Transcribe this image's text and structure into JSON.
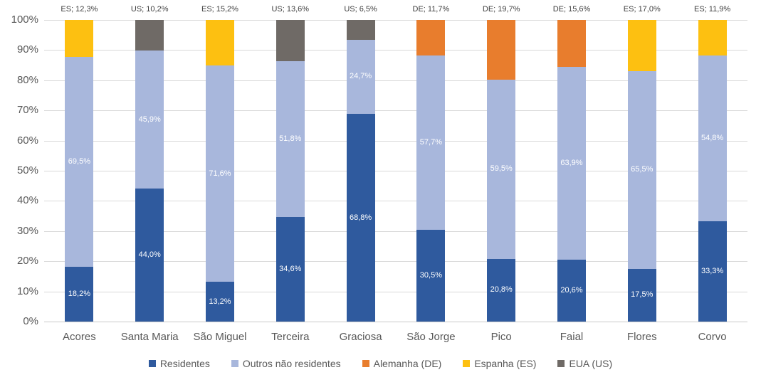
{
  "chart_data": {
    "type": "bar",
    "subtype": "stacked-100",
    "grid": true,
    "legend_position": "bottom",
    "ylim": [
      0,
      100
    ],
    "y_ticks": [
      "100%",
      "90%",
      "80%",
      "70%",
      "60%",
      "50%",
      "40%",
      "30%",
      "20%",
      "10%",
      "0%"
    ],
    "categories": [
      "Acores",
      "Santa Maria",
      "São Miguel",
      "Terceira",
      "Graciosa",
      "São Jorge",
      "Pico",
      "Faial",
      "Flores",
      "Corvo"
    ],
    "series": [
      {
        "name": "Residentes",
        "color": "#2f5a9e",
        "values": [
          18.2,
          44.0,
          13.2,
          34.6,
          68.8,
          30.5,
          20.8,
          20.6,
          17.5,
          33.3
        ],
        "labels": [
          "18,2%",
          "44,0%",
          "13,2%",
          "34,6%",
          "68,8%",
          "30,5%",
          "20,8%",
          "20,6%",
          "17,5%",
          "33,3%"
        ]
      },
      {
        "name": "Outros não residentes",
        "color": "#a8b7dc",
        "values": [
          69.5,
          45.9,
          71.6,
          51.8,
          24.7,
          57.7,
          59.5,
          63.9,
          65.5,
          54.8
        ],
        "labels": [
          "69,5%",
          "45,9%",
          "71,6%",
          "51,8%",
          "24,7%",
          "57,7%",
          "59,5%",
          "63,9%",
          "65,5%",
          "54,8%"
        ]
      }
    ],
    "top_segments": [
      {
        "code": "ES",
        "value": 12.3,
        "label": "ES; 12,3%"
      },
      {
        "code": "US",
        "value": 10.2,
        "label": "US; 10,2%"
      },
      {
        "code": "ES",
        "value": 15.2,
        "label": "ES; 15,2%"
      },
      {
        "code": "US",
        "value": 13.6,
        "label": "US; 13,6%"
      },
      {
        "code": "US",
        "value": 6.5,
        "label": "US; 6,5%"
      },
      {
        "code": "DE",
        "value": 11.7,
        "label": "DE; 11,7%"
      },
      {
        "code": "DE",
        "value": 19.7,
        "label": "DE; 19,7%"
      },
      {
        "code": "DE",
        "value": 15.6,
        "label": "DE; 15,6%"
      },
      {
        "code": "ES",
        "value": 17.0,
        "label": "ES; 17,0%"
      },
      {
        "code": "ES",
        "value": 11.9,
        "label": "ES; 11,9%"
      }
    ],
    "code_colors": {
      "DE": "#e87d2d",
      "ES": "#fdc011",
      "US": "#6f6a66"
    },
    "legend": [
      {
        "label": "Residentes",
        "color": "#2f5a9e"
      },
      {
        "label": "Outros não residentes",
        "color": "#a8b7dc"
      },
      {
        "label": "Alemanha (DE)",
        "color": "#e87d2d"
      },
      {
        "label": "Espanha (ES)",
        "color": "#fdc011"
      },
      {
        "label": "EUA (US)",
        "color": "#6f6a66"
      }
    ]
  }
}
